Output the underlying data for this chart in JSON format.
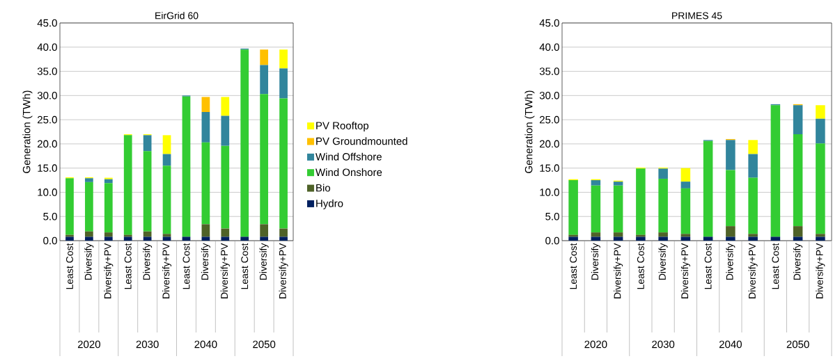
{
  "chart_data": [
    {
      "type": "bar",
      "stacked": true,
      "title": "EirGrid 60",
      "ylabel": "Generation (TWh)",
      "categories": [
        "Least Cost",
        "Diversify",
        "Diversify+PV",
        "Least Cost",
        "Diversify",
        "Diversify+PV",
        "Least Cost",
        "Diversify",
        "Diversify+PV",
        "Least Cost",
        "Diversify",
        "Diversify+PV"
      ],
      "annotations": [
        "2020",
        "2030",
        "2040",
        "2050"
      ],
      "ylim": [
        0,
        45
      ],
      "yticks": [
        {
          "value": 0,
          "label": "0.0"
        },
        {
          "value": 5,
          "label": "5.0"
        },
        {
          "value": 10,
          "label": "10.0"
        },
        {
          "value": 15,
          "label": "15.0"
        },
        {
          "value": 20,
          "label": "20.0"
        },
        {
          "value": 25,
          "label": "25.0"
        },
        {
          "value": 30,
          "label": "30.0"
        },
        {
          "value": 35,
          "label": "35.0"
        },
        {
          "value": 40,
          "label": "40.0"
        },
        {
          "value": 45,
          "label": "45.0"
        }
      ],
      "grid": "y",
      "legend": "right",
      "series": [
        {
          "name": "Hydro",
          "color": "#002060",
          "values": [
            0.8,
            0.8,
            0.8,
            0.8,
            0.8,
            0.8,
            0.8,
            0.8,
            0.8,
            0.8,
            0.8,
            0.8
          ]
        },
        {
          "name": "Bio",
          "color": "#4f6228",
          "values": [
            0.4,
            1.1,
            0.9,
            0.4,
            1.1,
            0.6,
            0,
            2.6,
            1.7,
            0,
            2.6,
            1.7
          ]
        },
        {
          "name": "Wind Onshore",
          "color": "#33cc33",
          "values": [
            11.7,
            10.2,
            10.2,
            20.6,
            16.6,
            14.1,
            29.0,
            16.9,
            17.1,
            38.7,
            26.9,
            26.9
          ]
        },
        {
          "name": "Wind Offshore",
          "color": "#31859c",
          "values": [
            0,
            0.8,
            0.8,
            0,
            3.3,
            2.4,
            0.2,
            6.3,
            6.2,
            0.2,
            6.0,
            6.2
          ]
        },
        {
          "name": "PV Groundmounted",
          "color": "#ffc000",
          "values": [
            0,
            0,
            0,
            0,
            0,
            0,
            0,
            3.1,
            0,
            0,
            3.2,
            0
          ]
        },
        {
          "name": "PV Rooftop",
          "color": "#ffff00",
          "values": [
            0.2,
            0.2,
            0.3,
            0.2,
            0.2,
            3.9,
            0,
            0,
            3.9,
            0,
            0,
            3.9
          ]
        }
      ]
    },
    {
      "type": "bar",
      "stacked": true,
      "title": "PRIMES 45",
      "ylabel": "Generation (TWh)",
      "categories": [
        "Least Cost",
        "Diversify",
        "Diversify+PV",
        "Least Cost",
        "Diversify",
        "Diversify+PV",
        "Least Cost",
        "Diversify",
        "Diversify+PV",
        "Least Cost",
        "Diversify",
        "Diversify+PV"
      ],
      "annotations": [
        "2020",
        "2030",
        "2040",
        "2050"
      ],
      "ylim": [
        0,
        45
      ],
      "yticks": [
        {
          "value": 0,
          "label": "0.0"
        },
        {
          "value": 5,
          "label": "5.0"
        },
        {
          "value": 10,
          "label": "10.0"
        },
        {
          "value": 15,
          "label": "15.0"
        },
        {
          "value": 20,
          "label": "20.0"
        },
        {
          "value": 25,
          "label": "25.0"
        },
        {
          "value": 30,
          "label": "30.0"
        },
        {
          "value": 35,
          "label": "35.0"
        },
        {
          "value": 40,
          "label": "40.0"
        },
        {
          "value": 45,
          "label": "45.0"
        }
      ],
      "grid": "y",
      "series": [
        {
          "color": "#002060",
          "values": [
            0.8,
            0.8,
            0.8,
            0.8,
            0.8,
            0.8,
            0.8,
            0.8,
            0.8,
            0.8,
            0.8,
            0.8
          ]
        },
        {
          "color": "#4f6228",
          "values": [
            0.4,
            0.9,
            0.9,
            0.4,
            0.9,
            0.6,
            0,
            2.2,
            0.6,
            0,
            2.2,
            0.6
          ]
        },
        {
          "color": "#33cc33",
          "values": [
            11.3,
            9.7,
            9.7,
            13.7,
            11.1,
            9.4,
            19.8,
            11.6,
            11.6,
            27.2,
            19.0,
            18.7
          ]
        },
        {
          "color": "#31859c",
          "values": [
            0,
            1.1,
            0.8,
            0,
            2.1,
            1.4,
            0.2,
            6.2,
            4.9,
            0.2,
            6.0,
            5.1
          ]
        },
        {
          "color": "#ffc000",
          "values": [
            0,
            0,
            0,
            0,
            0,
            0,
            0,
            0.2,
            0,
            0,
            0.2,
            0
          ]
        },
        {
          "color": "#ffff00",
          "values": [
            0.2,
            0.2,
            0.2,
            0.2,
            0.2,
            2.8,
            0,
            0,
            2.9,
            0,
            0,
            2.8
          ]
        }
      ]
    }
  ]
}
